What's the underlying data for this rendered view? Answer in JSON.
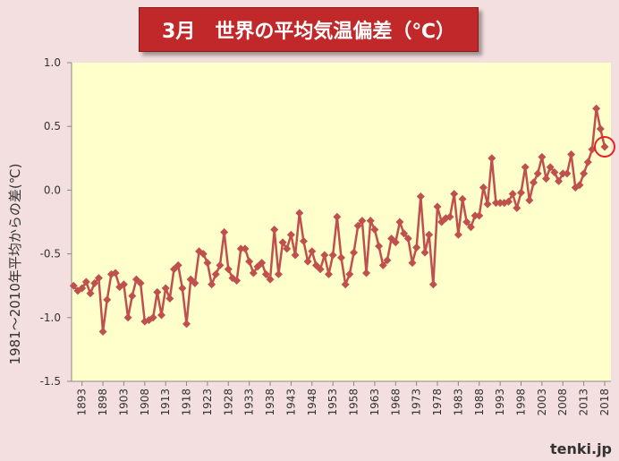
{
  "chart_data": {
    "type": "line",
    "title": "3月　世界の平均気温偏差（℃）",
    "y_label": "1981～2010年平均からの差(℃)",
    "source": "tenki.jp",
    "color": "#c0504d",
    "x": [
      1891,
      1892,
      1893,
      1894,
      1895,
      1896,
      1897,
      1898,
      1899,
      1900,
      1901,
      1902,
      1903,
      1904,
      1905,
      1906,
      1907,
      1908,
      1909,
      1910,
      1911,
      1912,
      1913,
      1914,
      1915,
      1916,
      1917,
      1918,
      1919,
      1920,
      1921,
      1922,
      1923,
      1924,
      1925,
      1926,
      1927,
      1928,
      1929,
      1930,
      1931,
      1932,
      1933,
      1934,
      1935,
      1936,
      1937,
      1938,
      1939,
      1940,
      1941,
      1942,
      1943,
      1944,
      1945,
      1946,
      1947,
      1948,
      1949,
      1950,
      1951,
      1952,
      1953,
      1954,
      1955,
      1956,
      1957,
      1958,
      1959,
      1960,
      1961,
      1962,
      1963,
      1964,
      1965,
      1966,
      1967,
      1968,
      1969,
      1970,
      1971,
      1972,
      1973,
      1974,
      1975,
      1976,
      1977,
      1978,
      1979,
      1980,
      1981,
      1982,
      1983,
      1984,
      1985,
      1986,
      1987,
      1988,
      1989,
      1990,
      1991,
      1992,
      1993,
      1994,
      1995,
      1996,
      1997,
      1998,
      1999,
      2000,
      2001,
      2002,
      2003,
      2004,
      2005,
      2006,
      2007,
      2008,
      2009,
      2010,
      2011,
      2012,
      2013,
      2014,
      2015,
      2016,
      2017,
      2018
    ],
    "values": [
      -0.75,
      -0.79,
      -0.77,
      -0.72,
      -0.81,
      -0.73,
      -0.69,
      -1.11,
      -0.86,
      -0.66,
      -0.65,
      -0.76,
      -0.74,
      -1.0,
      -0.83,
      -0.7,
      -0.73,
      -1.03,
      -1.02,
      -1.0,
      -0.8,
      -0.98,
      -0.77,
      -0.85,
      -0.62,
      -0.59,
      -0.77,
      -1.05,
      -0.7,
      -0.73,
      -0.48,
      -0.5,
      -0.57,
      -0.74,
      -0.66,
      -0.59,
      -0.33,
      -0.62,
      -0.69,
      -0.71,
      -0.46,
      -0.46,
      -0.56,
      -0.65,
      -0.6,
      -0.57,
      -0.66,
      -0.7,
      -0.31,
      -0.66,
      -0.41,
      -0.46,
      -0.35,
      -0.51,
      -0.18,
      -0.4,
      -0.56,
      -0.48,
      -0.59,
      -0.62,
      -0.51,
      -0.66,
      -0.51,
      -0.21,
      -0.53,
      -0.74,
      -0.66,
      -0.49,
      -0.28,
      -0.24,
      -0.65,
      -0.24,
      -0.31,
      -0.44,
      -0.59,
      -0.55,
      -0.38,
      -0.41,
      -0.25,
      -0.34,
      -0.38,
      -0.57,
      -0.45,
      -0.05,
      -0.49,
      -0.35,
      -0.74,
      -0.13,
      -0.25,
      -0.22,
      -0.21,
      -0.03,
      -0.35,
      -0.07,
      -0.25,
      -0.29,
      -0.2,
      -0.2,
      0.02,
      -0.11,
      0.25,
      -0.1,
      -0.1,
      -0.1,
      -0.09,
      -0.03,
      -0.14,
      -0.02,
      0.18,
      -0.08,
      0.06,
      0.13,
      0.26,
      0.09,
      0.18,
      0.14,
      0.07,
      0.13,
      0.13,
      0.28,
      0.02,
      0.04,
      0.13,
      0.22,
      0.32,
      0.64,
      0.48,
      0.34
    ],
    "xlim": [
      1890.5,
      2019.5
    ],
    "xticks": [
      1893,
      1898,
      1903,
      1908,
      1913,
      1918,
      1923,
      1928,
      1933,
      1938,
      1943,
      1948,
      1953,
      1958,
      1963,
      1968,
      1973,
      1978,
      1983,
      1988,
      1993,
      1998,
      2003,
      2008,
      2013,
      2018
    ],
    "ylim": [
      -1.5,
      1.0
    ],
    "yticks": [
      {
        "value": -1.5,
        "label": "-1.5"
      },
      {
        "value": -1.0,
        "label": "-1.0"
      },
      {
        "value": -0.5,
        "label": "-0.5"
      },
      {
        "value": 0,
        "label": "0.0"
      },
      {
        "value": 0.5,
        "label": "0.5"
      },
      {
        "value": 1.0,
        "label": "1.0"
      }
    ],
    "highlight_index": 127,
    "highlight_color": "#e8202a"
  }
}
